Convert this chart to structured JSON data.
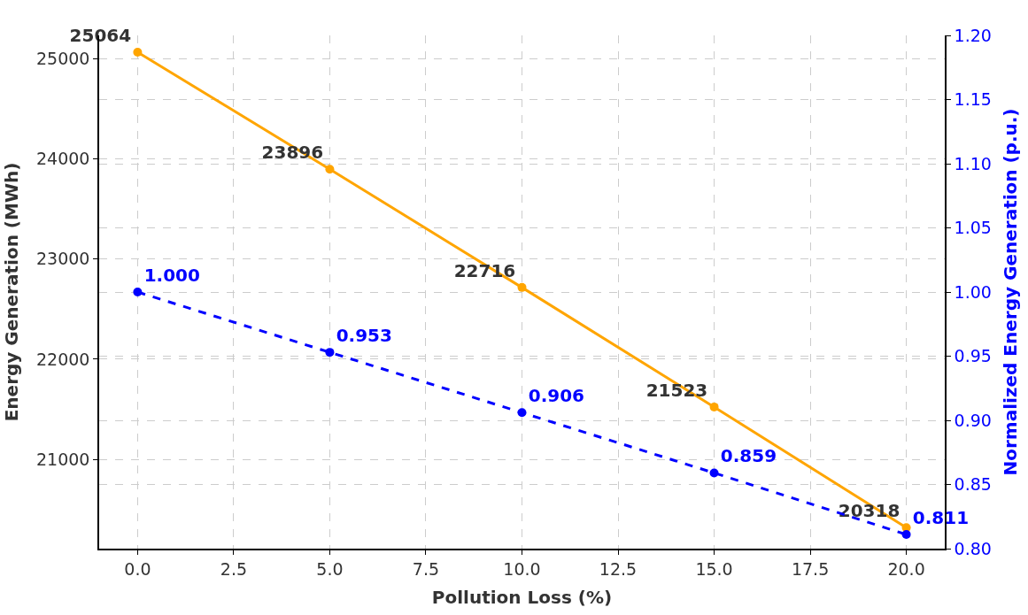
{
  "chart_data": {
    "type": "line",
    "xlabel": "Pollution Loss (%)",
    "ylabel": "Energy Generation (MWh)",
    "y2label": "Normalized Energy Generation (p.u.)",
    "x": [
      0,
      5,
      10,
      15,
      20
    ],
    "series": [
      {
        "color": "#ffa500",
        "values": [
          25064,
          23896,
          22716,
          21523,
          20318
        ],
        "value_labels": [
          "25064",
          "23896",
          "22716",
          "21523",
          "20318"
        ],
        "line_style": "solid"
      },
      {
        "color": "#0000ff",
        "axis": "y2",
        "values": [
          1.0,
          0.953,
          0.906,
          0.859,
          0.811
        ],
        "value_labels": [
          "1.000",
          "0.953",
          "0.906",
          "0.859",
          "0.811"
        ],
        "line_style": "dashed"
      }
    ],
    "xlim": [
      -1,
      21
    ],
    "xticks": [
      {
        "value": 0,
        "label": "0.0"
      },
      {
        "value": 2.5,
        "label": "2.5"
      },
      {
        "value": 5,
        "label": "5.0"
      },
      {
        "value": 7.5,
        "label": "7.5"
      },
      {
        "value": 10,
        "label": "10.0"
      },
      {
        "value": 12.5,
        "label": "12.5"
      },
      {
        "value": 15,
        "label": "15.0"
      },
      {
        "value": 17.5,
        "label": "17.5"
      },
      {
        "value": 20,
        "label": "20.0"
      }
    ],
    "ylim": [
      20109,
      25232
    ],
    "yticks": [
      21000,
      22000,
      23000,
      24000,
      25000
    ],
    "y2lim": [
      0.8,
      1.2
    ],
    "y2ticks": [
      {
        "value": 0.8,
        "label": "0.80"
      },
      {
        "value": 0.85,
        "label": "0.85"
      },
      {
        "value": 0.9,
        "label": "0.90"
      },
      {
        "value": 0.95,
        "label": "0.95"
      },
      {
        "value": 1.0,
        "label": "1.00"
      },
      {
        "value": 1.05,
        "label": "1.05"
      },
      {
        "value": 1.1,
        "label": "1.10"
      },
      {
        "value": 1.15,
        "label": "1.15"
      },
      {
        "value": 1.2,
        "label": "1.20"
      }
    ],
    "grid": true,
    "marker": "circle",
    "legend": false
  }
}
